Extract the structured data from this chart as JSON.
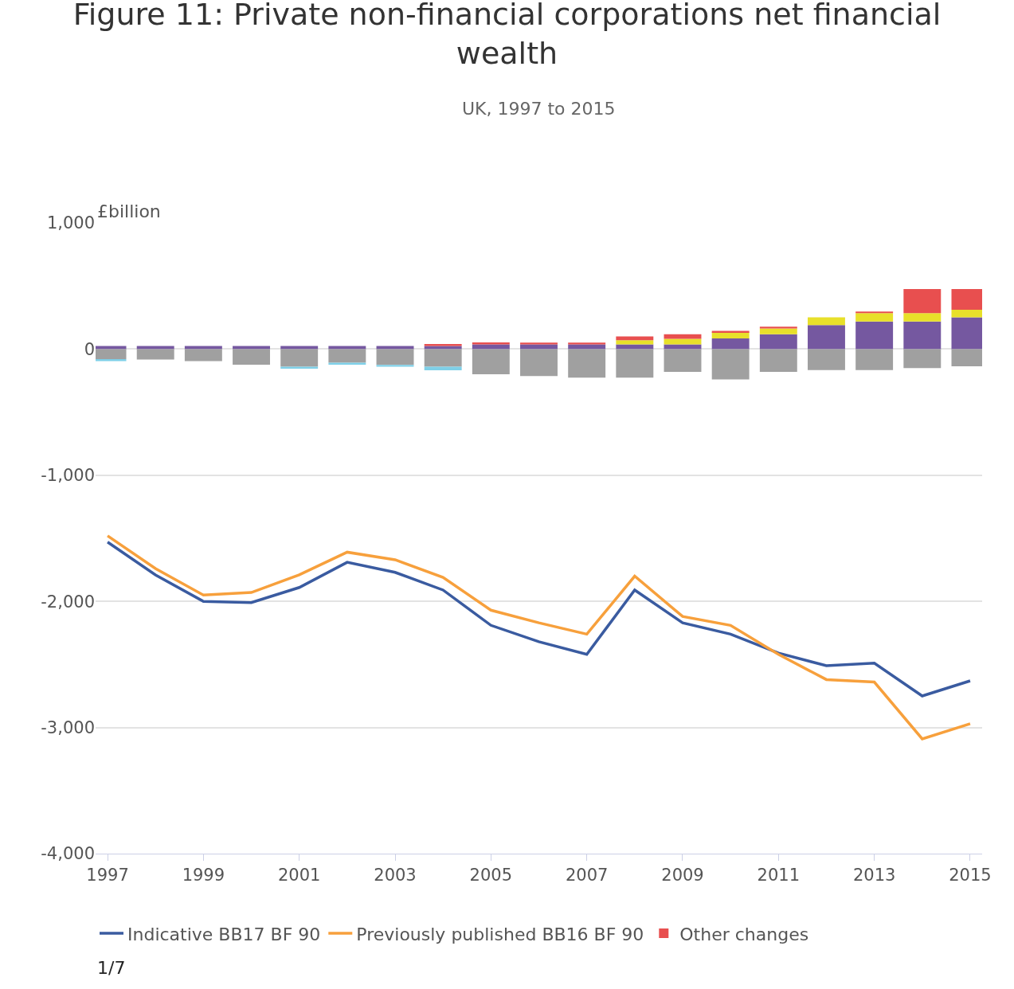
{
  "chart_data": {
    "type": "bar",
    "stacked": true,
    "title": "Figure 11: Private non-financial corporations net financial wealth",
    "subtitle": "UK, 1997 to 2015",
    "ylabel": "£billion",
    "x": [
      1997,
      1998,
      1999,
      2000,
      2001,
      2002,
      2003,
      2004,
      2005,
      2006,
      2007,
      2008,
      2009,
      2010,
      2011,
      2012,
      2013,
      2014,
      2015
    ],
    "series": [
      {
        "color": "#7558a0",
        "values": [
          25,
          25,
          25,
          25,
          25,
          25,
          25,
          25,
          38,
          38,
          38,
          38,
          38,
          85,
          117,
          191,
          219,
          219,
          252
        ]
      },
      {
        "color": "#e8e02a",
        "values": [
          null,
          null,
          null,
          null,
          null,
          null,
          null,
          null,
          null,
          null,
          null,
          33,
          44,
          49,
          47,
          61,
          66,
          66,
          60
        ]
      },
      {
        "name": "Other changes",
        "color": "#e84f4f",
        "values": [
          null,
          null,
          null,
          null,
          null,
          null,
          null,
          15,
          15,
          14,
          13,
          30,
          35,
          11,
          14,
          null,
          13,
          191,
          164
        ]
      },
      {
        "color": "#a0a0a0",
        "values": [
          -80,
          -82,
          -95,
          -124,
          -140,
          -108,
          -126,
          -140,
          -200,
          -213,
          -227,
          -227,
          -180,
          -240,
          -180,
          -167,
          -167,
          -151,
          -137
        ]
      },
      {
        "color": "#7fd0e8",
        "values": [
          -15,
          null,
          null,
          null,
          -15,
          -15,
          -13,
          -28,
          null,
          null,
          null,
          null,
          null,
          null,
          null,
          null,
          null,
          null,
          null
        ]
      },
      {
        "type": "line",
        "name": "Indicative BB17 BF 90",
        "color": "#3a5ba0",
        "values": [
          -1530,
          -1790,
          -2000,
          -2010,
          -1890,
          -1690,
          -1770,
          -1910,
          -2190,
          -2320,
          -2420,
          -1910,
          -2170,
          -2260,
          -2410,
          -2510,
          -2490,
          -2750,
          -2630
        ]
      },
      {
        "type": "line",
        "name": "Previously published BB16 BF 90",
        "color": "#f7a03c",
        "values": [
          -1480,
          -1740,
          -1950,
          -1930,
          -1790,
          -1610,
          -1670,
          -1810,
          -2070,
          -2170,
          -2260,
          -1800,
          -2120,
          -2190,
          -2420,
          -2620,
          -2640,
          -3090,
          -2970
        ]
      }
    ],
    "xlim": [
      1996.75,
      2015.25
    ],
    "xticks": [
      1997,
      1999,
      2001,
      2003,
      2005,
      2007,
      2009,
      2011,
      2013,
      2015
    ],
    "ylim": [
      -4000,
      1000
    ],
    "yticks": [
      {
        "value": -4000,
        "label": "-4,000"
      },
      {
        "value": -3000,
        "label": "-3,000"
      },
      {
        "value": -2000,
        "label": "-2,000"
      },
      {
        "value": -1000,
        "label": "-1,000"
      },
      0,
      {
        "value": 1000,
        "label": "1,000"
      }
    ],
    "grid": "y",
    "legend": "bottom",
    "annotations": [
      "1/7"
    ]
  }
}
